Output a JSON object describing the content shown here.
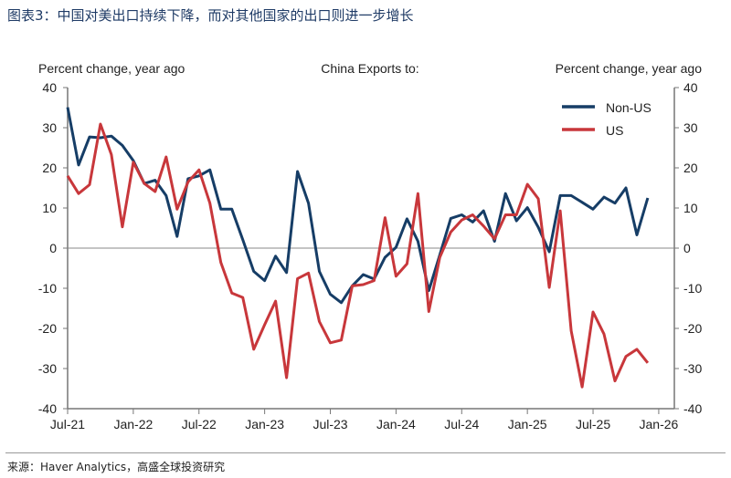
{
  "title": "图表3：中国对美出口持续下降，而对其他国家的出口则进一步增长",
  "source": "来源：Haver Analytics，高盛全球投资研究",
  "chart_data": {
    "type": "line",
    "title": "China Exports to:",
    "ylabel_left": "Percent change, year ago",
    "ylabel_right": "Percent change, year ago",
    "ylim": [
      -40,
      40
    ],
    "yticks": [
      40,
      30,
      20,
      10,
      0,
      -10,
      -20,
      -30,
      -40
    ],
    "xticks": [
      "Jul-21",
      "Jan-22",
      "Jul-22",
      "Jan-23",
      "Jul-23",
      "Jan-24",
      "Jul-24",
      "Jan-25",
      "Jul-25",
      "Jan-26"
    ],
    "x_start": "Jul-21",
    "x_end": "Dec-25",
    "frequency": "monthly",
    "legend_position": "top-right",
    "grid": false,
    "series": [
      {
        "name": "Non-US",
        "color": "#163d66",
        "values": [
          35.1,
          20.7,
          27.7,
          27.5,
          27.9,
          25.6,
          21.8,
          16.1,
          16.9,
          13.1,
          2.9,
          17.3,
          18.0,
          19.5,
          9.7,
          9.7,
          2.1,
          -5.8,
          -8.1,
          -2.0,
          -6.1,
          19.1,
          11.2,
          -5.8,
          -11.5,
          -13.6,
          -9.4,
          -6.6,
          -7.7,
          -2.3,
          0.2,
          7.3,
          1.7,
          -10.6,
          -1.7,
          7.4,
          8.3,
          6.5,
          9.3,
          1.7,
          13.6,
          6.8,
          10.1,
          5.2,
          -0.9,
          13.1,
          13.1,
          11.4,
          9.7,
          12.7,
          11.2,
          15.0,
          3.3,
          12.5
        ]
      },
      {
        "name": "US",
        "color": "#c8373b",
        "values": [
          18.0,
          13.6,
          15.8,
          30.9,
          23.3,
          5.3,
          21.4,
          16.1,
          14.1,
          22.7,
          9.7,
          16.5,
          19.5,
          11.2,
          -3.6,
          -11.2,
          -12.3,
          -25.2,
          -19.1,
          -13.2,
          -32.3,
          -7.6,
          -6.2,
          -18.3,
          -23.6,
          -22.9,
          -9.4,
          -9.1,
          -8.1,
          7.6,
          -7.0,
          -3.9,
          13.6,
          -15.8,
          -2.3,
          4.0,
          7.0,
          8.3,
          5.5,
          2.3,
          8.3,
          8.3,
          15.9,
          12.3,
          -9.8,
          9.3,
          -20.6,
          -34.6,
          -15.9,
          -21.4,
          -33.1,
          -27.0,
          -25.2,
          -28.6
        ]
      }
    ]
  }
}
